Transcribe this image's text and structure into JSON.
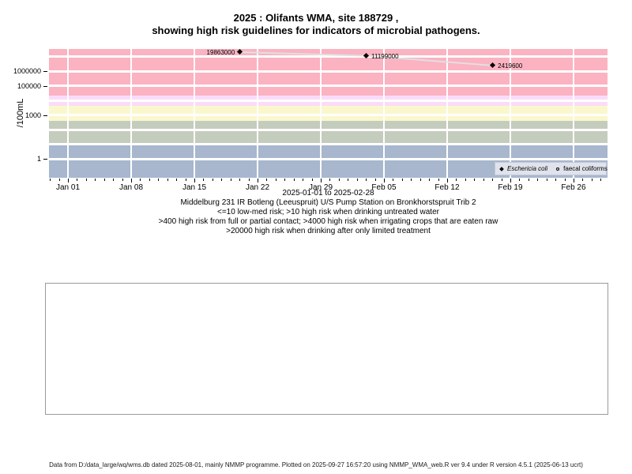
{
  "title": {
    "line1": "2025 : Olifants WMA, site 188729 ,",
    "line2": "showing high risk guidelines for indicators of microbial pathogens."
  },
  "chart_data": {
    "type": "scatter",
    "title": "2025 : Olifants WMA, site 188729 , showing high risk guidelines for indicators of microbial pathogens.",
    "ylabel": "/100mL",
    "y_axis": {
      "scale": "log",
      "ylim": [
        0.05,
        32000000
      ],
      "ticks": [
        {
          "label": "1000000",
          "value": 1000000
        },
        {
          "label": "100000",
          "value": 100000
        },
        {
          "label": "1000",
          "value": 1000
        },
        {
          "label": "1",
          "value": 1
        }
      ],
      "gridline_values": [
        1,
        10,
        100,
        1000,
        10000,
        100000,
        1000000,
        10000000
      ]
    },
    "x_axis": {
      "start": "2025-01-01",
      "end": "2025-02-28",
      "minor_tick_every_days": 1,
      "ticks": [
        {
          "label": "Jan 01",
          "date": "2025-01-01"
        },
        {
          "label": "Jan 08",
          "date": "2025-01-08"
        },
        {
          "label": "Jan 15",
          "date": "2025-01-15"
        },
        {
          "label": "Jan 22",
          "date": "2025-01-22"
        },
        {
          "label": "Jan 29",
          "date": "2025-01-29"
        },
        {
          "label": "Feb 05",
          "date": "2025-02-05"
        },
        {
          "label": "Feb 12",
          "date": "2025-02-12"
        },
        {
          "label": "Feb 19",
          "date": "2025-02-19"
        },
        {
          "label": "Feb 26",
          "date": "2025-02-26"
        }
      ]
    },
    "bands": [
      {
        "from": 20000,
        "to": 32000000,
        "color": "#FBB2C1"
      },
      {
        "from": 4000,
        "to": 20000,
        "color": "#FADCF8"
      },
      {
        "from": 400,
        "to": 4000,
        "color": "#FBF7CD"
      },
      {
        "from": 10,
        "to": 400,
        "color": "#C4CCBE"
      },
      {
        "from": 0.05,
        "to": 10,
        "color": "#A8B6CE"
      }
    ],
    "series": [
      {
        "name": "Eschericia coli",
        "marker": "filled-diamond",
        "line_color": "#E0E0E0",
        "points": [
          {
            "date": "2025-01-20",
            "value": 19863000,
            "label": "19863000",
            "label_side": "left"
          },
          {
            "date": "2025-02-03",
            "value": 11199000,
            "label": "11199000",
            "label_side": "right"
          },
          {
            "date": "2025-02-17",
            "value": 2419600,
            "label": "2419600",
            "label_side": "right"
          }
        ]
      },
      {
        "name": "faecal coliforms",
        "marker": "open-circle",
        "points": []
      }
    ],
    "legend": {
      "position": "bottom-right"
    }
  },
  "annotations": {
    "date_range": "2025-01-01 to 2025-02-28",
    "station": "Middelburg 231 IR Botleng (Leeuspruit) U/S Pump Station on Bronkhorstspruit Trib 2",
    "guideline_drinking": "<=10 low-med risk; >10 high risk when drinking untreated water",
    "guideline_contact": ">400 high risk from full or partial contact; >4000 high risk when irrigating crops that are eaten raw",
    "guideline_treatment": ">20000 high risk when drinking after only limited treatment"
  },
  "footer": "Data from D:/data_large/wq/wms.db dated 2025-08-01, mainly NMMP programme. Plotted on 2025-09-27 16:57:20 using NMMP_WMA_web.R ver 9.4 under R version 4.5.1 (2025-06-13 ucrt)"
}
